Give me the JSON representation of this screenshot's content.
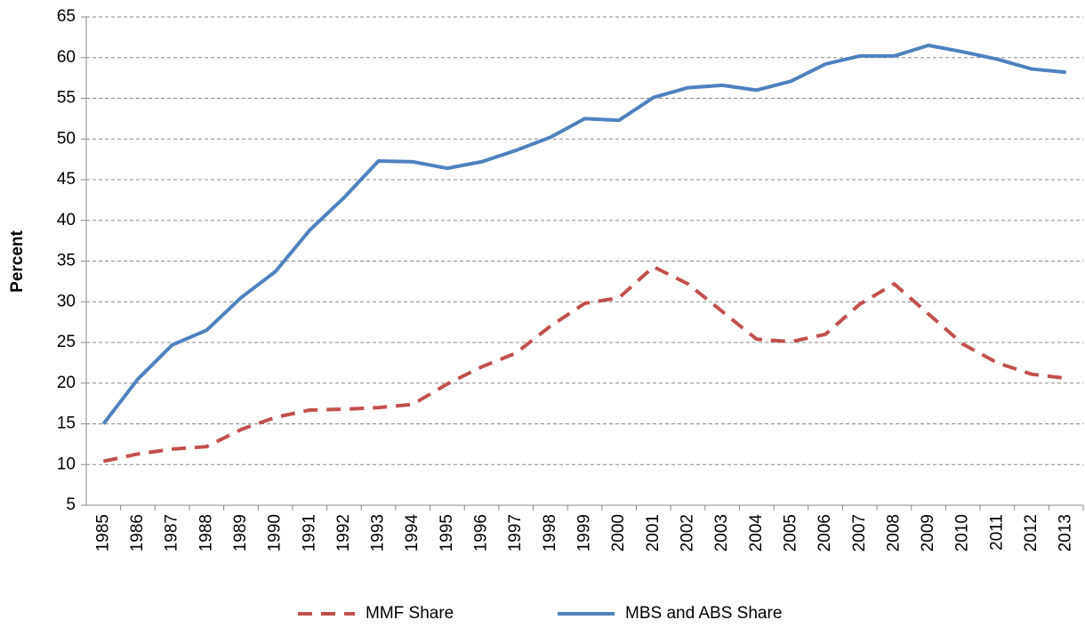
{
  "chart_data": {
    "type": "line",
    "y_label": "Percent",
    "categories": [
      "1985",
      "1986",
      "1987",
      "1988",
      "1989",
      "1990",
      "1991",
      "1992",
      "1993",
      "1994",
      "1995",
      "1996",
      "1997",
      "1998",
      "1999",
      "2000",
      "2001",
      "2002",
      "2003",
      "2004",
      "2005",
      "2006",
      "2007",
      "2008",
      "2009",
      "2010",
      "2011",
      "2012",
      "2013"
    ],
    "series": [
      {
        "name": "MMF Share",
        "color": "#c0504d",
        "dashed": true,
        "values": [
          10.4,
          11.3,
          11.9,
          12.2,
          14.3,
          15.8,
          16.7,
          16.8,
          17.0,
          17.4,
          19.9,
          22.0,
          23.7,
          27.0,
          29.8,
          30.5,
          34.3,
          32.2,
          28.8,
          25.4,
          25.1,
          26.0,
          29.7,
          32.2,
          28.5,
          24.8,
          22.5,
          21.1,
          20.6
        ]
      },
      {
        "name": "MBS and ABS Share",
        "color": "#4f81bd",
        "dashed": false,
        "values": [
          15.0,
          20.5,
          24.7,
          26.5,
          30.5,
          33.7,
          38.8,
          42.8,
          47.3,
          47.2,
          46.4,
          47.2,
          48.6,
          50.2,
          52.5,
          52.3,
          55.1,
          56.3,
          56.6,
          56.0,
          57.1,
          59.2,
          60.2,
          60.2,
          61.5,
          60.7,
          59.8,
          58.6,
          58.2
        ]
      }
    ],
    "ylim": [
      5,
      65
    ],
    "yticks": [
      5,
      10,
      15,
      20,
      25,
      30,
      35,
      40,
      45,
      50,
      55,
      60,
      65
    ],
    "grid": true,
    "legend": "bottom"
  }
}
